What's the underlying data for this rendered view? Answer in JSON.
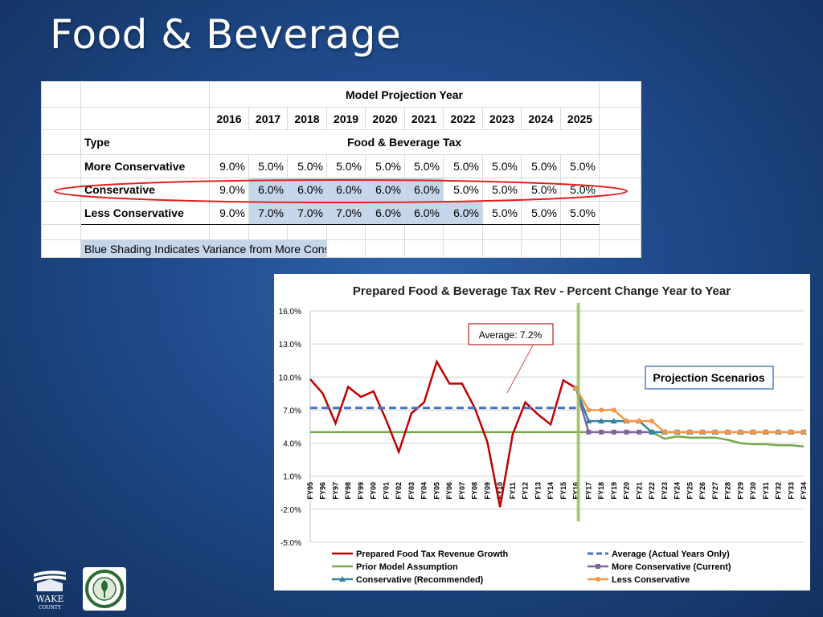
{
  "slide": {
    "title": "Food & Beverage"
  },
  "table": {
    "header": "Model Projection Year",
    "years": [
      "2016",
      "2017",
      "2018",
      "2019",
      "2020",
      "2021",
      "2022",
      "2023",
      "2024",
      "2025"
    ],
    "type_label": "Type",
    "tax_label": "Food & Beverage Tax",
    "rows": [
      {
        "label": "More Conservative",
        "values": [
          "9.0%",
          "5.0%",
          "5.0%",
          "5.0%",
          "5.0%",
          "5.0%",
          "5.0%",
          "5.0%",
          "5.0%",
          "5.0%"
        ],
        "shaded": [
          false,
          false,
          false,
          false,
          false,
          false,
          false,
          false,
          false,
          false
        ]
      },
      {
        "label": "Conservative",
        "values": [
          "9.0%",
          "6.0%",
          "6.0%",
          "6.0%",
          "6.0%",
          "6.0%",
          "5.0%",
          "5.0%",
          "5.0%",
          "5.0%"
        ],
        "shaded": [
          false,
          true,
          true,
          true,
          true,
          true,
          false,
          false,
          false,
          false
        ]
      },
      {
        "label": "Less Conservative",
        "values": [
          "9.0%",
          "7.0%",
          "7.0%",
          "7.0%",
          "6.0%",
          "6.0%",
          "6.0%",
          "5.0%",
          "5.0%",
          "5.0%"
        ],
        "shaded": [
          false,
          true,
          true,
          true,
          true,
          true,
          true,
          false,
          false,
          false
        ]
      }
    ],
    "note": "Blue Shading Indicates Variance from More Conservative",
    "highlight_color": "#e02020"
  },
  "chart_data": {
    "type": "line",
    "title": "Prepared Food & Beverage Tax Rev - Percent Change Year to Year",
    "x": [
      "FY95",
      "FY96",
      "FY97",
      "FY98",
      "FY99",
      "FY00",
      "FY01",
      "FY02",
      "FY03",
      "FY04",
      "FY05",
      "FY06",
      "FY07",
      "FY08",
      "FY09",
      "FY10",
      "FY11",
      "FY12",
      "FY13",
      "FY14",
      "FY15",
      "FY16",
      "FY17",
      "FY18",
      "FY19",
      "FY20",
      "FY21",
      "FY22",
      "FY23",
      "FY24",
      "FY25",
      "FY26",
      "FY27",
      "FY28",
      "FY29",
      "FY30",
      "FY31",
      "FY32",
      "FY33",
      "FY34"
    ],
    "ylim": [
      -5.0,
      16.0
    ],
    "yticks": [
      "16.0%",
      "13.0%",
      "10.0%",
      "7.0%",
      "4.0%",
      "1.0%",
      "-2.0%",
      "-5.0%"
    ],
    "ytick_values": [
      16,
      13,
      10,
      7,
      4,
      1,
      -2,
      -5
    ],
    "grid": true,
    "legend_position": "bottom",
    "series": [
      {
        "name": "Prepared Food Tax Revenue Growth",
        "color": "#c00000",
        "marker": "none",
        "values": [
          9.8,
          8.5,
          5.8,
          9.1,
          8.2,
          8.7,
          6.1,
          3.2,
          6.7,
          7.7,
          11.4,
          9.4,
          9.4,
          7.2,
          4.1,
          -1.8,
          4.8,
          7.7,
          6.6,
          5.7,
          9.7,
          9.0,
          null,
          null,
          null,
          null,
          null,
          null,
          null,
          null,
          null,
          null,
          null,
          null,
          null,
          null,
          null,
          null,
          null,
          null
        ]
      },
      {
        "name": "Prior Model Assumption",
        "color": "#77a84a",
        "marker": "none",
        "values": [
          5.0,
          5.0,
          5.0,
          5.0,
          5.0,
          5.0,
          5.0,
          5.0,
          5.0,
          5.0,
          5.0,
          5.0,
          5.0,
          5.0,
          5.0,
          5.0,
          5.0,
          5.0,
          5.0,
          5.0,
          5.0,
          5.0,
          5.0,
          5.0,
          5.0,
          5.0,
          5.0,
          5.0,
          4.4,
          4.6,
          4.5,
          4.5,
          4.5,
          4.3,
          4.0,
          3.9,
          3.9,
          3.8,
          3.8,
          3.7
        ]
      },
      {
        "name": "Conservative (Recommended)",
        "color": "#31849b",
        "marker": "triangle",
        "values": [
          null,
          null,
          null,
          null,
          null,
          null,
          null,
          null,
          null,
          null,
          null,
          null,
          null,
          null,
          null,
          null,
          null,
          null,
          null,
          null,
          null,
          9.0,
          6.0,
          6.0,
          6.0,
          6.0,
          6.0,
          5.0,
          5.0,
          5.0,
          5.0,
          5.0,
          5.0,
          5.0,
          5.0,
          5.0,
          5.0,
          5.0,
          5.0,
          5.0
        ]
      },
      {
        "name": "Average (Actual Years Only)",
        "color": "#4472c4",
        "marker": "none",
        "dashed": true,
        "values": [
          7.2,
          7.2,
          7.2,
          7.2,
          7.2,
          7.2,
          7.2,
          7.2,
          7.2,
          7.2,
          7.2,
          7.2,
          7.2,
          7.2,
          7.2,
          7.2,
          7.2,
          7.2,
          7.2,
          7.2,
          7.2,
          7.2,
          null,
          null,
          null,
          null,
          null,
          null,
          null,
          null,
          null,
          null,
          null,
          null,
          null,
          null,
          null,
          null,
          null,
          null
        ]
      },
      {
        "name": "More Conservative (Current)",
        "color": "#8064a2",
        "marker": "square",
        "values": [
          null,
          null,
          null,
          null,
          null,
          null,
          null,
          null,
          null,
          null,
          null,
          null,
          null,
          null,
          null,
          null,
          null,
          null,
          null,
          null,
          null,
          9.0,
          5.0,
          5.0,
          5.0,
          5.0,
          5.0,
          5.0,
          5.0,
          5.0,
          5.0,
          5.0,
          5.0,
          5.0,
          5.0,
          5.0,
          5.0,
          5.0,
          5.0,
          5.0
        ]
      },
      {
        "name": "Less Conservative",
        "color": "#f79646",
        "marker": "circle",
        "values": [
          null,
          null,
          null,
          null,
          null,
          null,
          null,
          null,
          null,
          null,
          null,
          null,
          null,
          null,
          null,
          null,
          null,
          null,
          null,
          null,
          null,
          9.0,
          7.0,
          7.0,
          7.0,
          6.0,
          6.0,
          6.0,
          5.0,
          5.0,
          5.0,
          5.0,
          5.0,
          5.0,
          5.0,
          5.0,
          5.0,
          5.0,
          5.0,
          5.0
        ]
      }
    ],
    "legend_order": [
      0,
      3,
      1,
      4,
      2,
      5
    ],
    "projection_start": "FY16",
    "annotations": {
      "average": "Average: 7.2%",
      "scenarios": "Projection Scenarios"
    }
  }
}
